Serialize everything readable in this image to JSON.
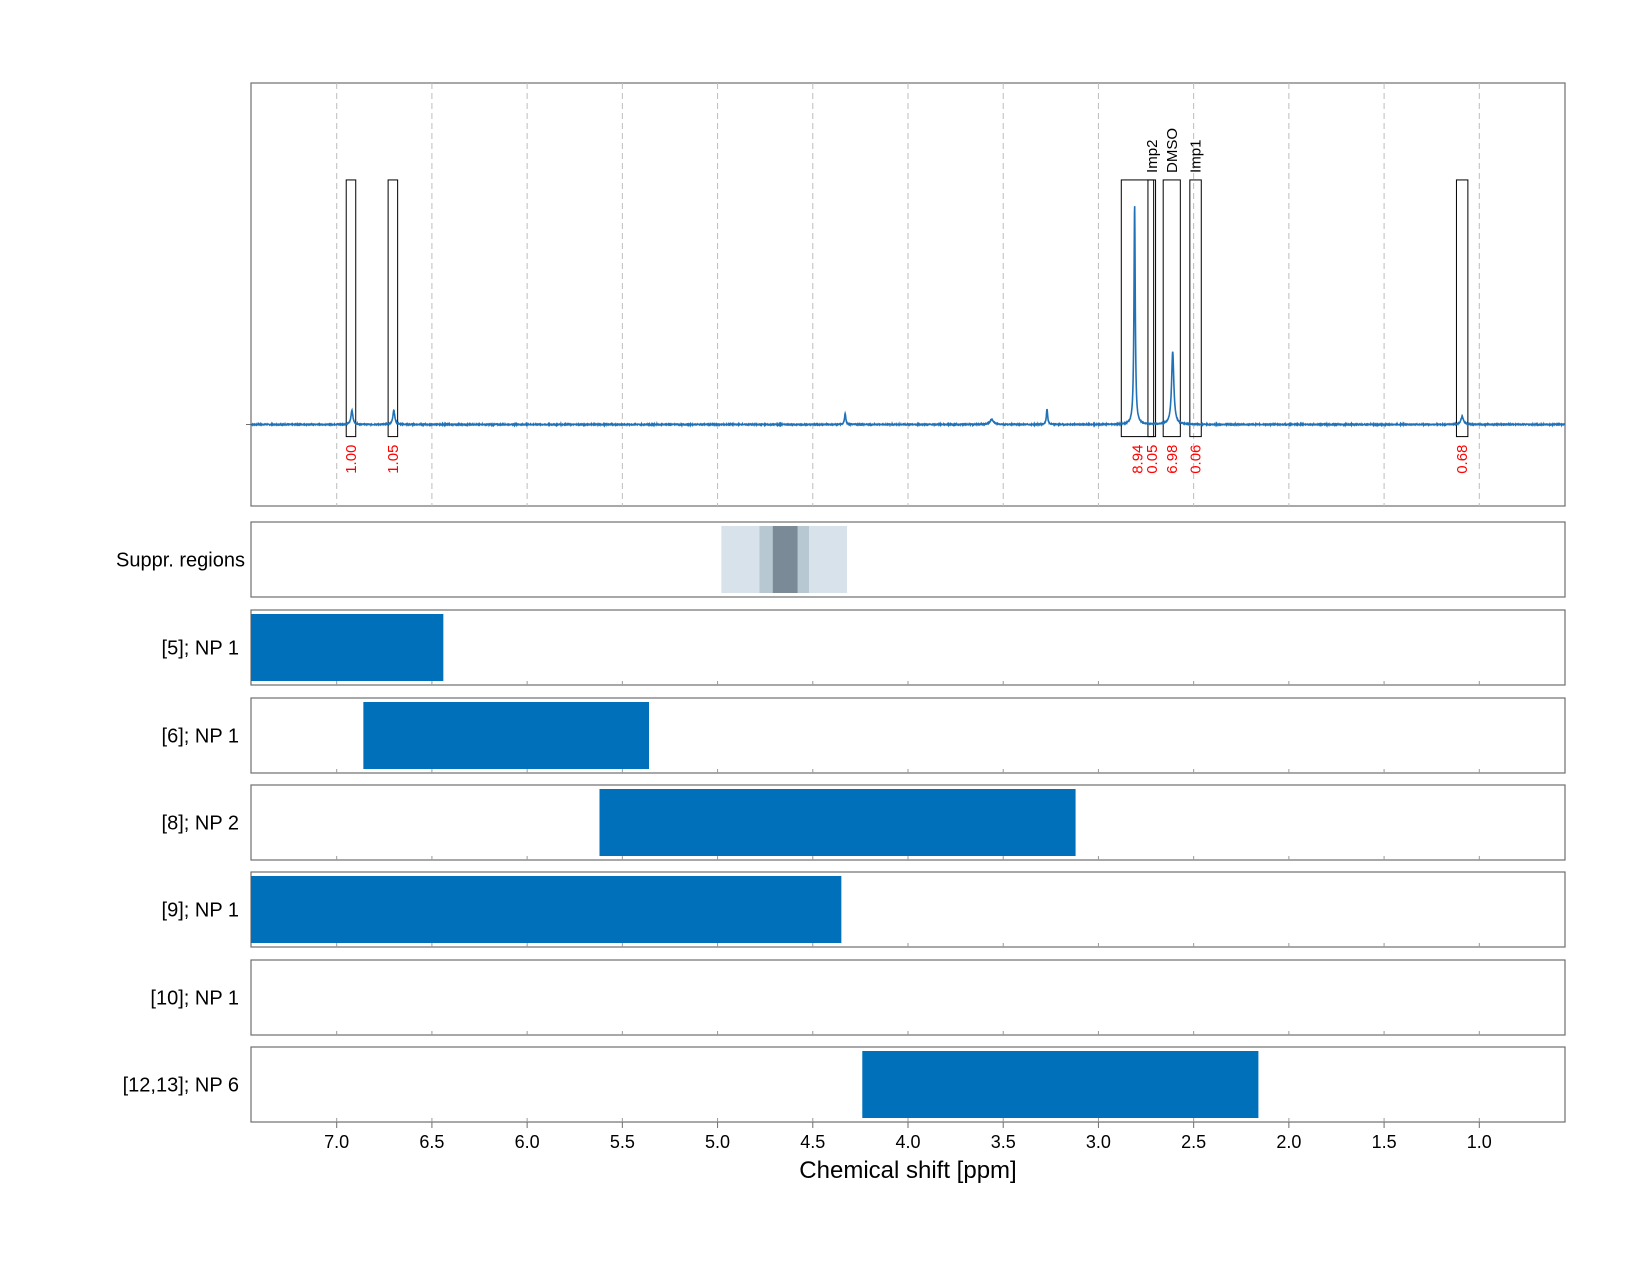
{
  "chart_data": {
    "type": "line",
    "xlabel": "Chemical shift [ppm]",
    "xlim": [
      7.45,
      0.55
    ],
    "x_reversed": true,
    "xticks": [
      "7.0",
      "6.5",
      "6.0",
      "5.5",
      "5.0",
      "4.5",
      "4.0",
      "3.5",
      "3.0",
      "2.5",
      "2.0",
      "1.5",
      "1.0"
    ],
    "grid": "vertical dashed",
    "colors": {
      "spectrum": "#1f72b8",
      "bars": "#0070bb",
      "integrals": "#ff0000",
      "boxes": "#000000"
    },
    "spectrum": {
      "baseline": 0,
      "ylim": [
        -0.37,
        1.55
      ],
      "peaks": [
        {
          "x": 6.92,
          "height": 0.065,
          "width": 0.006
        },
        {
          "x": 6.7,
          "height": 0.065,
          "width": 0.006
        },
        {
          "x": 4.33,
          "height": 0.05,
          "width": 0.004
        },
        {
          "x": 3.56,
          "height": 0.022,
          "width": 0.012
        },
        {
          "x": 3.27,
          "height": 0.07,
          "width": 0.004
        },
        {
          "x": 2.81,
          "height": 1.0,
          "width": 0.004
        },
        {
          "x": 2.61,
          "height": 0.33,
          "width": 0.007
        },
        {
          "x": 1.09,
          "height": 0.035,
          "width": 0.008
        }
      ]
    },
    "integration_regions": [
      {
        "x_from": 6.95,
        "x_to": 6.9,
        "integral": "1.00",
        "label": ""
      },
      {
        "x_from": 6.73,
        "x_to": 6.68,
        "integral": "1.05",
        "label": ""
      },
      {
        "x_from": 2.88,
        "x_to": 2.71,
        "integral": "8.94",
        "label": ""
      },
      {
        "x_from": 2.74,
        "x_to": 2.7,
        "integral": "0.05",
        "label": "Imp2"
      },
      {
        "x_from": 2.66,
        "x_to": 2.57,
        "integral": "6.98",
        "label": "DMSO"
      },
      {
        "x_from": 2.52,
        "x_to": 2.46,
        "integral": "0.06",
        "label": "Imp1"
      },
      {
        "x_from": 1.12,
        "x_to": 1.06,
        "integral": "0.68",
        "label": ""
      }
    ],
    "suppression_regions": {
      "label": "Suppr. regions",
      "bands": [
        {
          "x_from": 4.98,
          "x_to": 4.32,
          "color": "#d8e2ea"
        },
        {
          "x_from": 4.78,
          "x_to": 4.52,
          "color": "#b8c8d2"
        },
        {
          "x_from": 4.71,
          "x_to": 4.58,
          "color": "#7a8a96"
        }
      ]
    },
    "tracks": [
      {
        "label": "[5]; NP 1",
        "x_from": 7.45,
        "x_to": 6.44
      },
      {
        "label": "[6]; NP 1",
        "x_from": 6.86,
        "x_to": 5.36
      },
      {
        "label": "[8]; NP 2",
        "x_from": 5.62,
        "x_to": 3.12
      },
      {
        "label": "[9]; NP 1",
        "x_from": 7.45,
        "x_to": 4.35
      },
      {
        "label": "[10]; NP 1",
        "x_from": null,
        "x_to": null
      },
      {
        "label": "[12,13]; NP 6",
        "x_from": 4.24,
        "x_to": 2.16
      }
    ]
  }
}
